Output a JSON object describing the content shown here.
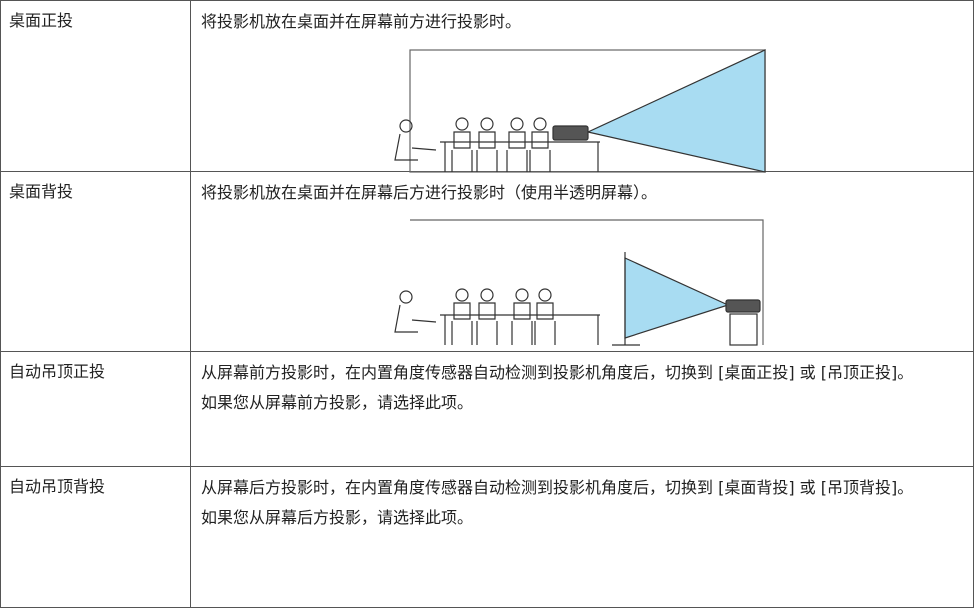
{
  "table": {
    "rows": [
      {
        "label": "桌面正投",
        "paragraphs": [
          "将投影机放在桌面并在屏幕前方进行投影时。"
        ]
      },
      {
        "label": "桌面背投",
        "paragraphs": [
          "将投影机放在桌面并在屏幕后方进行投影时（使用半透明屏幕）。"
        ]
      },
      {
        "label": "自动吊顶正投",
        "paragraphs": [
          "从屏幕前方投影时，在内置角度传感器自动检测到投影机角度后，切换到 [桌面正投] 或 [吊顶正投]。",
          "如果您从屏幕前方投影，请选择此项。"
        ]
      },
      {
        "label": "自动吊顶背投",
        "paragraphs": [
          "从屏幕后方投影时，在内置角度传感器自动检测到投影机角度后，切换到 [桌面背投] 或 [吊顶背投]。",
          "如果您从屏幕后方投影，请选择此项。"
        ]
      }
    ]
  }
}
